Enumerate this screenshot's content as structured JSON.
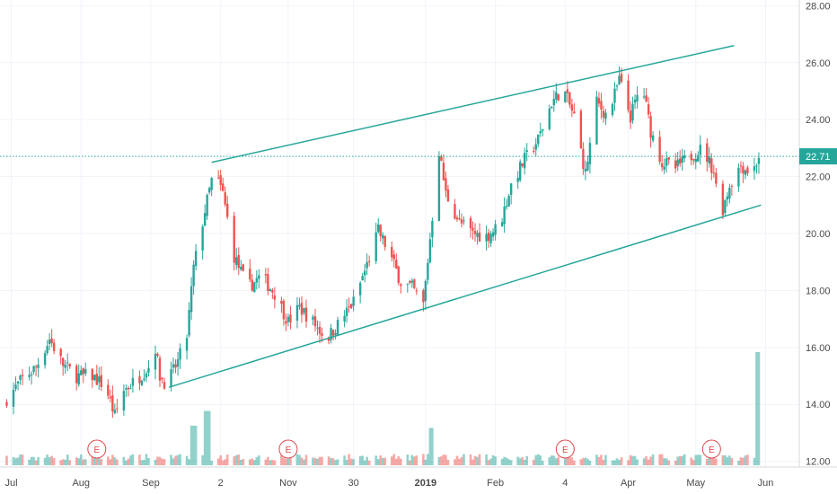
{
  "colors": {
    "up": "#26a69a",
    "down": "#ef5350",
    "channel": "#26a69a",
    "price_line": "#26a69a",
    "grid": "#f0f3fa",
    "axis_text": "#4a4a4a",
    "earnings": "#e0474c"
  },
  "last_price_label": "22.71",
  "chart_data": {
    "type": "candlestick",
    "title": "",
    "xlabel": "",
    "ylabel": "",
    "ylim": [
      11.8,
      28.2
    ],
    "y_ticks": [
      "28.00",
      "26.00",
      "24.00",
      "22.00",
      "20.00",
      "18.00",
      "16.00",
      "14.00",
      "12.00"
    ],
    "x_ticks": [
      {
        "label": "Jul",
        "date": "2018-07-01"
      },
      {
        "label": "Aug",
        "date": "2018-08-01"
      },
      {
        "label": "Sep",
        "date": "2018-09-01"
      },
      {
        "label": "2",
        "date": "2018-10-02"
      },
      {
        "label": "Nov",
        "date": "2018-11-01"
      },
      {
        "label": "30",
        "date": "2018-11-30"
      },
      {
        "label": "2019",
        "date": "2019-01-01",
        "bold": true
      },
      {
        "label": "Feb",
        "date": "2019-02-01"
      },
      {
        "label": "4",
        "date": "2019-03-04"
      },
      {
        "label": "Apr",
        "date": "2019-04-01"
      },
      {
        "label": "May",
        "date": "2019-05-01"
      },
      {
        "label": "Jun",
        "date": "2019-06-01"
      }
    ],
    "last_price": 22.71,
    "close_path": [
      [
        "2018-06-29",
        14.2
      ],
      [
        "2018-07-06",
        14.9
      ],
      [
        "2018-07-12",
        15.3
      ],
      [
        "2018-07-18",
        16.3
      ],
      [
        "2018-07-24",
        15.4
      ],
      [
        "2018-07-30",
        15.0
      ],
      [
        "2018-08-06",
        15.0
      ],
      [
        "2018-08-12",
        14.6
      ],
      [
        "2018-08-16",
        13.6
      ],
      [
        "2018-08-20",
        14.5
      ],
      [
        "2018-08-26",
        14.9
      ],
      [
        "2018-09-01",
        15.4
      ],
      [
        "2018-09-03",
        16.0
      ],
      [
        "2018-09-05",
        15.0
      ],
      [
        "2018-09-08",
        14.7
      ],
      [
        "2018-09-13",
        15.5
      ],
      [
        "2018-09-17",
        16.4
      ],
      [
        "2018-09-20",
        18.8
      ],
      [
        "2018-09-25",
        20.8
      ],
      [
        "2018-09-29",
        22.2
      ],
      [
        "2018-10-03",
        21.4
      ],
      [
        "2018-10-08",
        19.2
      ],
      [
        "2018-10-14",
        18.1
      ],
      [
        "2018-10-20",
        18.5
      ],
      [
        "2018-10-26",
        17.9
      ],
      [
        "2018-11-01",
        16.9
      ],
      [
        "2018-11-06",
        17.4
      ],
      [
        "2018-11-12",
        16.9
      ],
      [
        "2018-11-18",
        16.3
      ],
      [
        "2018-11-24",
        16.9
      ],
      [
        "2018-11-30",
        17.6
      ],
      [
        "2018-12-06",
        18.9
      ],
      [
        "2018-12-11",
        20.1
      ],
      [
        "2018-12-16",
        19.3
      ],
      [
        "2018-12-21",
        18.3
      ],
      [
        "2018-12-26",
        18.1
      ],
      [
        "2018-12-31",
        17.5
      ],
      [
        "2019-01-04",
        20.6
      ],
      [
        "2019-01-07",
        22.9
      ],
      [
        "2019-01-10",
        21.4
      ],
      [
        "2019-01-16",
        20.4
      ],
      [
        "2019-01-22",
        20.0
      ],
      [
        "2019-01-28",
        19.9
      ],
      [
        "2019-02-03",
        20.3
      ],
      [
        "2019-02-08",
        21.7
      ],
      [
        "2019-02-14",
        22.6
      ],
      [
        "2019-02-20",
        23.3
      ],
      [
        "2019-02-26",
        24.6
      ],
      [
        "2019-03-03",
        25.1
      ],
      [
        "2019-03-08",
        24.1
      ],
      [
        "2019-03-13",
        22.1
      ],
      [
        "2019-03-18",
        24.6
      ],
      [
        "2019-03-23",
        24.1
      ],
      [
        "2019-03-28",
        25.4
      ],
      [
        "2019-04-02",
        24.1
      ],
      [
        "2019-04-07",
        25.3
      ],
      [
        "2019-04-11",
        23.6
      ],
      [
        "2019-04-16",
        22.5
      ],
      [
        "2019-04-22",
        22.3
      ],
      [
        "2019-04-28",
        22.7
      ],
      [
        "2019-05-04",
        23.0
      ],
      [
        "2019-05-09",
        22.2
      ],
      [
        "2019-05-12",
        20.6
      ],
      [
        "2019-05-16",
        21.7
      ],
      [
        "2019-05-21",
        22.4
      ],
      [
        "2019-05-26",
        22.1
      ],
      [
        "2019-05-29",
        22.71
      ]
    ],
    "channel": {
      "upper": [
        [
          "2018-09-28",
          22.5
        ],
        [
          "2019-05-18",
          26.6
        ]
      ],
      "lower": [
        [
          "2018-09-09",
          14.6
        ],
        [
          "2019-05-30",
          21.0
        ]
      ]
    },
    "earnings_dates": [
      "2018-08-08",
      "2018-11-01",
      "2019-03-04",
      "2019-05-08"
    ],
    "volume_spikes": [
      {
        "date": "2018-09-20",
        "relative": 0.35
      },
      {
        "date": "2018-09-26",
        "relative": 0.48
      },
      {
        "date": "2019-01-04",
        "relative": 0.33
      },
      {
        "date": "2019-05-29",
        "relative": 1.0
      }
    ]
  }
}
